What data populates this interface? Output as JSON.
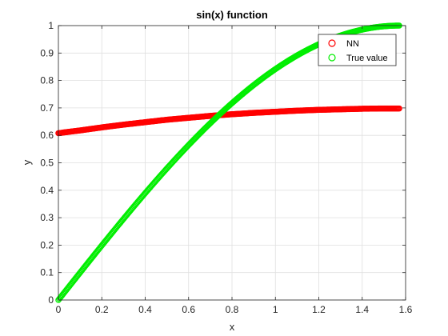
{
  "chart_data": {
    "type": "scatter",
    "title": "sin(x) function",
    "xlabel": "x",
    "ylabel": "y",
    "xlim": [
      0,
      1.6
    ],
    "ylim": [
      0,
      1
    ],
    "xticks": [
      "0",
      "0.2",
      "0.4",
      "0.6",
      "0.8",
      "1",
      "1.2",
      "1.4",
      "1.6"
    ],
    "yticks": [
      "0",
      "0.1",
      "0.2",
      "0.3",
      "0.4",
      "0.5",
      "0.6",
      "0.7",
      "0.8",
      "0.9",
      "1"
    ],
    "grid": true,
    "legend_position": "top-right",
    "x_range_sampled": [
      0,
      1.5708
    ],
    "series": [
      {
        "name": "NN",
        "color": "#ff0000",
        "marker": "circle-open",
        "x": [
          0,
          0.1,
          0.2,
          0.3,
          0.4,
          0.5,
          0.6,
          0.7,
          0.8,
          0.9,
          1.0,
          1.1,
          1.2,
          1.3,
          1.4,
          1.5,
          1.5708
        ],
        "values": [
          0.608,
          0.618,
          0.629,
          0.639,
          0.648,
          0.657,
          0.664,
          0.671,
          0.677,
          0.682,
          0.686,
          0.69,
          0.693,
          0.695,
          0.697,
          0.698,
          0.698
        ]
      },
      {
        "name": "True value",
        "color": "#00ee00",
        "marker": "circle-open",
        "function": "sin(x)"
      }
    ]
  }
}
